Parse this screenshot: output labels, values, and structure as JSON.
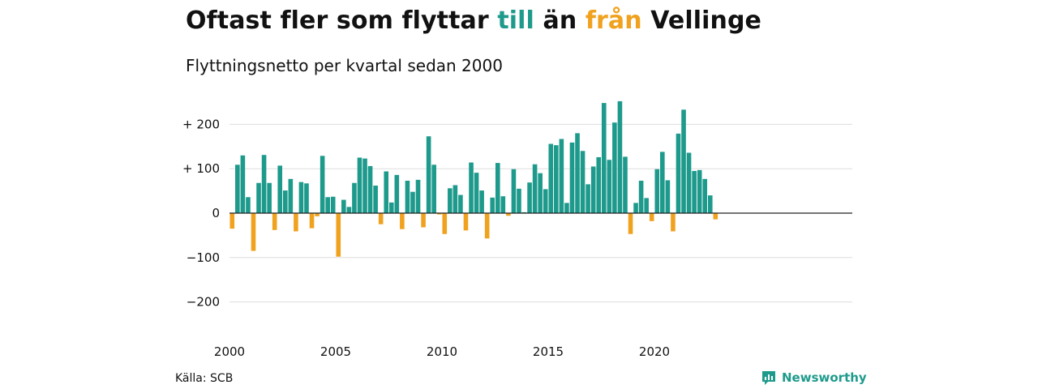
{
  "header": {
    "title_part1": "Oftast fler som flyttar ",
    "title_till": "till",
    "title_part2": " än ",
    "title_fran": "från",
    "title_part3": " Vellinge",
    "subtitle": "Flyttningsnetto per kvartal sedan 2000"
  },
  "footer": {
    "source": "Källa: SCB",
    "brand": "Newsworthy",
    "brand_icon": "newsworthy-logo-icon"
  },
  "colors": {
    "positive": "#1e9a8c",
    "negative": "#f0a21f",
    "grid": "#dddddd"
  },
  "chart_data": {
    "type": "bar",
    "title": "Oftast fler som flyttar till än från Vellinge",
    "subtitle": "Flyttningsnetto per kvartal sedan 2000",
    "x_start": "2000 Q1",
    "x_ticks": [
      2000,
      2005,
      2010,
      2015,
      2020
    ],
    "y_ticks": [
      {
        "value": 200,
        "label": "+ 200"
      },
      {
        "value": 100,
        "label": "+ 100"
      },
      {
        "value": 0,
        "label": "0"
      },
      {
        "value": -100,
        "label": "−100"
      },
      {
        "value": -200,
        "label": "−200"
      }
    ],
    "ylim": [
      -250,
      250
    ],
    "grid": true,
    "values": [
      -35,
      109,
      130,
      36,
      -85,
      68,
      131,
      68,
      -38,
      107,
      51,
      77,
      -41,
      70,
      67,
      -34,
      -7,
      129,
      36,
      37,
      -98,
      30,
      14,
      68,
      125,
      123,
      106,
      62,
      -25,
      94,
      24,
      86,
      -36,
      73,
      48,
      75,
      -32,
      173,
      109,
      -3,
      -47,
      56,
      63,
      41,
      -39,
      114,
      91,
      51,
      -57,
      35,
      113,
      38,
      -6,
      99,
      55,
      2,
      69,
      110,
      90,
      54,
      156,
      153,
      167,
      23,
      159,
      180,
      140,
      65,
      105,
      126,
      248,
      120,
      204,
      252,
      127,
      -47,
      23,
      73,
      34,
      -18,
      99,
      138,
      74,
      -41,
      179,
      233,
      136,
      95,
      97,
      77,
      40,
      -14
    ]
  }
}
